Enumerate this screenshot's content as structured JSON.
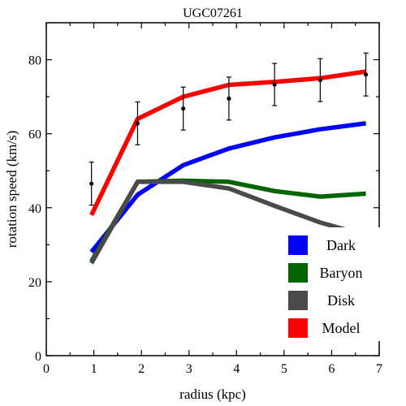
{
  "chart_data": {
    "type": "line",
    "title": "UGC07261",
    "xlabel": "radius (kpc)",
    "ylabel": "rotation speed (km/s)",
    "xlim": [
      0,
      7
    ],
    "ylim": [
      0,
      90
    ],
    "x_ticks": [
      0,
      1,
      2,
      3,
      4,
      5,
      6,
      7
    ],
    "y_ticks": [
      0,
      20,
      40,
      60,
      80
    ],
    "legend_position": "bottom-right",
    "series": [
      {
        "name": "Dark",
        "color": "#0000ff",
        "x": [
          0.95,
          1.92,
          2.88,
          3.84,
          4.8,
          5.76,
          6.72
        ],
        "y": [
          28,
          43.5,
          51.5,
          56,
          59,
          61.2,
          62.8
        ]
      },
      {
        "name": "Baryon",
        "color": "#006400",
        "x": [
          0.95,
          1.92,
          2.88,
          3.84,
          4.8,
          5.76,
          6.72
        ],
        "y": [
          25.5,
          47,
          47.3,
          47,
          44.5,
          43,
          43.8
        ]
      },
      {
        "name": "Disk",
        "color": "#4a4a4a",
        "x": [
          0.95,
          1.92,
          2.88,
          3.84,
          4.8,
          5.76,
          6.72
        ],
        "y": [
          25,
          47,
          47,
          45.2,
          40.5,
          36,
          32.5
        ]
      },
      {
        "name": "Model",
        "color": "#ff0000",
        "x": [
          0.95,
          1.92,
          2.88,
          3.84,
          4.8,
          5.76,
          6.72
        ],
        "y": [
          38,
          64,
          70,
          73.2,
          74,
          75,
          76.8
        ]
      }
    ],
    "observed": {
      "x": [
        0.95,
        1.92,
        2.88,
        3.84,
        4.8,
        5.76,
        6.72
      ],
      "y": [
        46.5,
        62.8,
        66.8,
        69.5,
        73.3,
        74.5,
        76
      ],
      "err": [
        5.8,
        5.8,
        5.8,
        5.8,
        5.7,
        5.8,
        5.8
      ]
    }
  }
}
